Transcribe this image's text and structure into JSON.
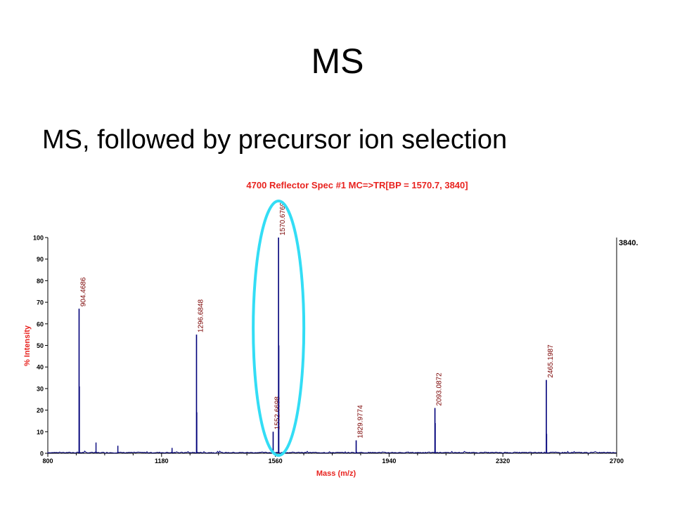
{
  "slide": {
    "title": "MS",
    "subtitle": "MS, followed by precursor ion selection"
  },
  "colors": {
    "title_red": "#e8231f",
    "trace_blue": "#00007a",
    "ellipse_cyan": "#33ddf5",
    "peak_label_red": "#7a0000"
  },
  "chart_data": {
    "type": "line",
    "title": "4700 Reflector Spec #1 MC=>TR[BP = 1570.7, 3840]",
    "xlabel": "Mass (m/z)",
    "ylabel": "% Intensity",
    "xlim": [
      800,
      2700
    ],
    "ylim": [
      0,
      100
    ],
    "xticks": [
      800,
      1180,
      1560,
      1940,
      2320,
      2700
    ],
    "xtick_labels": [
      "800",
      "1180",
      "1560",
      "1940",
      "2320",
      "2700"
    ],
    "yticks": [
      0,
      10,
      20,
      30,
      40,
      50,
      60,
      70,
      80,
      90,
      100
    ],
    "right_label": "3840.",
    "grid": false,
    "legend": "none",
    "peaks": [
      {
        "mz": 904.4686,
        "intensity": 67,
        "label": "904.4686"
      },
      {
        "mz": 1296.6848,
        "intensity": 55,
        "label": "1296.6848"
      },
      {
        "mz": 1552.6698,
        "intensity": 10,
        "label": "1552.6698"
      },
      {
        "mz": 1570.6769,
        "intensity": 100,
        "label": "1570.6769"
      },
      {
        "mz": 1829.9774,
        "intensity": 6,
        "label": "1829.9774"
      },
      {
        "mz": 2093.0872,
        "intensity": 21,
        "label": "2093.0872"
      },
      {
        "mz": 2465.1987,
        "intensity": 34,
        "label": "2465.1987"
      }
    ],
    "minor_peaks": [
      {
        "mz": 905.5,
        "intensity": 31
      },
      {
        "mz": 961,
        "intensity": 5
      },
      {
        "mz": 1034,
        "intensity": 3.5
      },
      {
        "mz": 1215,
        "intensity": 2.5
      },
      {
        "mz": 1297.7,
        "intensity": 19
      },
      {
        "mz": 1571.7,
        "intensity": 50
      },
      {
        "mz": 2094.1,
        "intensity": 14
      },
      {
        "mz": 2466.2,
        "intensity": 9
      }
    ],
    "highlighted_peak_mz": 1570.6769
  }
}
